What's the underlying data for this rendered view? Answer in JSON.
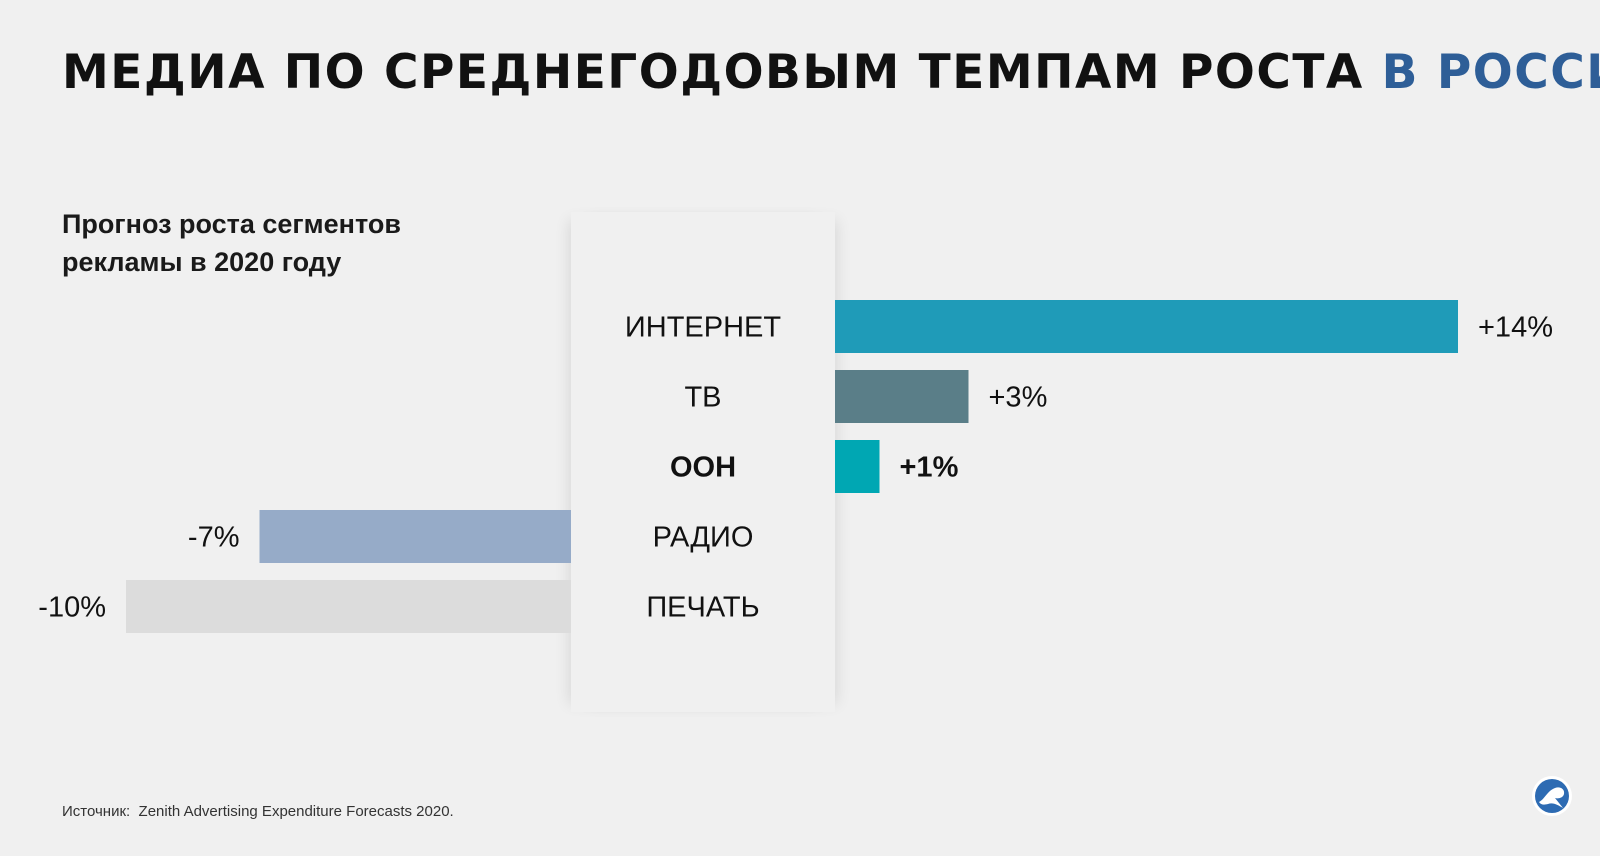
{
  "header": {
    "title_main": "МЕДИА ПО СРЕДНЕГОДОВЫМ ТЕМПАМ РОСТА",
    "title_accent": "В РОССИИ",
    "subtitle": "Прогноз роста сегментов рекламы в 2020 году"
  },
  "chart_data": {
    "type": "bar",
    "orientation": "horizontal",
    "categories": [
      "ИНТЕРНЕТ",
      "ТВ",
      "OOH",
      "РАДИО",
      "ПЕЧАТЬ"
    ],
    "values": [
      14,
      3,
      1,
      -7,
      -10
    ],
    "value_labels": [
      "+14%",
      "+3%",
      "+1%",
      "-7%",
      "-10%"
    ],
    "highlighted": "OOH",
    "colors": [
      "#1f9bb8",
      "#5a7e88",
      "#00a7b3",
      "#96abc8",
      "#dcdcdc"
    ],
    "unit": "%",
    "title": "МЕДИА ПО СРЕДНЕГОДОВЫМ ТЕМПАМ РОСТА В РОССИИ",
    "subtitle": "Прогноз роста сегментов рекламы в 2020 году",
    "xlabel": "",
    "ylabel": ""
  },
  "footer": {
    "source": "Источник:  Zenith Advertising Expenditure Forecasts 2020."
  },
  "branding": {
    "logo_icon": "rbc-logo-icon",
    "title_accent_color": "#2e5e97"
  }
}
